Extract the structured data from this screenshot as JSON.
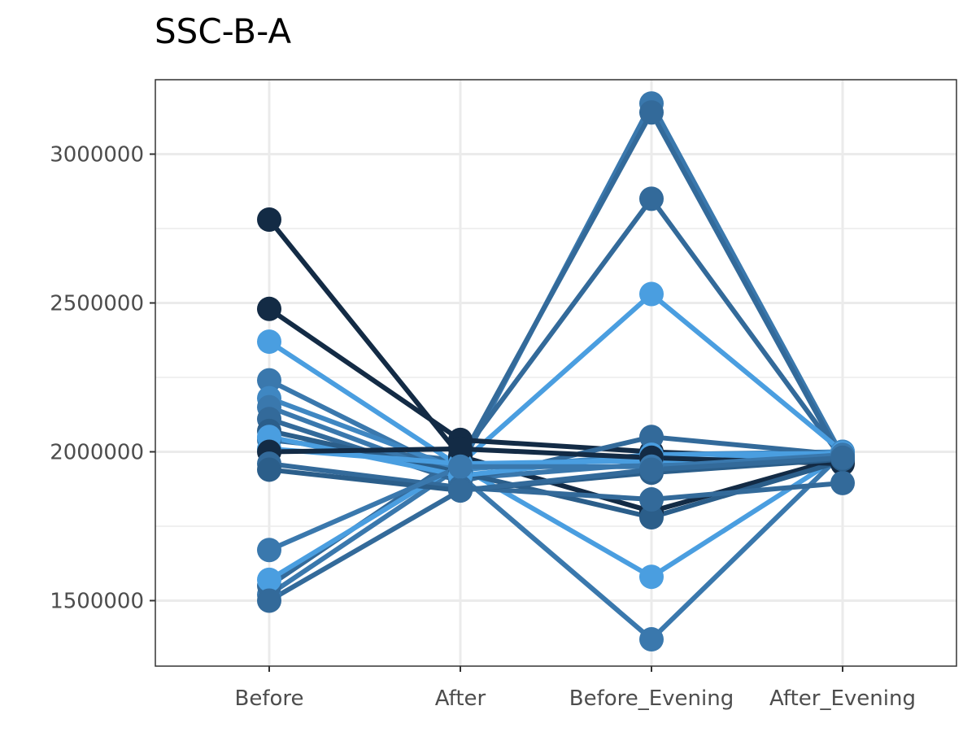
{
  "chart_data": {
    "type": "line",
    "title": "SSC-B-A",
    "xlabel": "",
    "ylabel": "",
    "categories": [
      "Before",
      "After",
      "Before_Evening",
      "After_Evening"
    ],
    "y_ticks": [
      "1500000",
      "2000000",
      "2500000",
      "3000000"
    ],
    "ylim": [
      1280000,
      3250000
    ],
    "grid": true,
    "legend": "none",
    "colors": {
      "dark": "#132b45",
      "mid": "#336a9a",
      "light": "#4a9ee0",
      "grid": "#ebebeb",
      "panel_border": "#333333"
    },
    "series": [
      {
        "color": "#3a78ad",
        "values": [
          1520000,
          1950000,
          3170000,
          1985000
        ]
      },
      {
        "color": "#336a9a",
        "values": [
          2040000,
          1970000,
          3140000,
          1970000
        ]
      },
      {
        "color": "#336a9a",
        "values": [
          1550000,
          1985000,
          2850000,
          1975000
        ]
      },
      {
        "color": "#4a9ee0",
        "values": [
          1570000,
          1960000,
          2530000,
          2000000
        ]
      },
      {
        "color": "#132b45",
        "values": [
          2780000,
          1985000,
          1800000,
          1980000
        ]
      },
      {
        "color": "#132b45",
        "values": [
          2480000,
          2040000,
          2000000,
          1975000
        ]
      },
      {
        "color": "#4a9ee0",
        "values": [
          2370000,
          1950000,
          1580000,
          1990000
        ]
      },
      {
        "color": "#3a78ad",
        "values": [
          2240000,
          1920000,
          1370000,
          1995000
        ]
      },
      {
        "color": "#3f87c2",
        "values": [
          2180000,
          1940000,
          1990000,
          2000000
        ]
      },
      {
        "color": "#3a78ad",
        "values": [
          2150000,
          1910000,
          1960000,
          1985000
        ]
      },
      {
        "color": "#336a9a",
        "values": [
          2110000,
          1900000,
          2050000,
          1990000
        ]
      },
      {
        "color": "#2b5e8a",
        "values": [
          2070000,
          1930000,
          1780000,
          1970000
        ]
      },
      {
        "color": "#4a9ee0",
        "values": [
          2050000,
          1920000,
          1990000,
          1995000
        ]
      },
      {
        "color": "#4a9ee0",
        "values": [
          2010000,
          1960000,
          1970000,
          1985000
        ]
      },
      {
        "color": "#132b45",
        "values": [
          2000000,
          2010000,
          1980000,
          1960000
        ]
      },
      {
        "color": "#336a9a",
        "values": [
          1960000,
          1880000,
          1840000,
          1895000
        ]
      },
      {
        "color": "#2b5e8a",
        "values": [
          1940000,
          1870000,
          1930000,
          1975000
        ]
      },
      {
        "color": "#3a78ad",
        "values": [
          1670000,
          1950000,
          1950000,
          1990000
        ]
      },
      {
        "color": "#336a9a",
        "values": [
          1500000,
          1870000,
          1940000,
          1980000
        ]
      }
    ]
  }
}
